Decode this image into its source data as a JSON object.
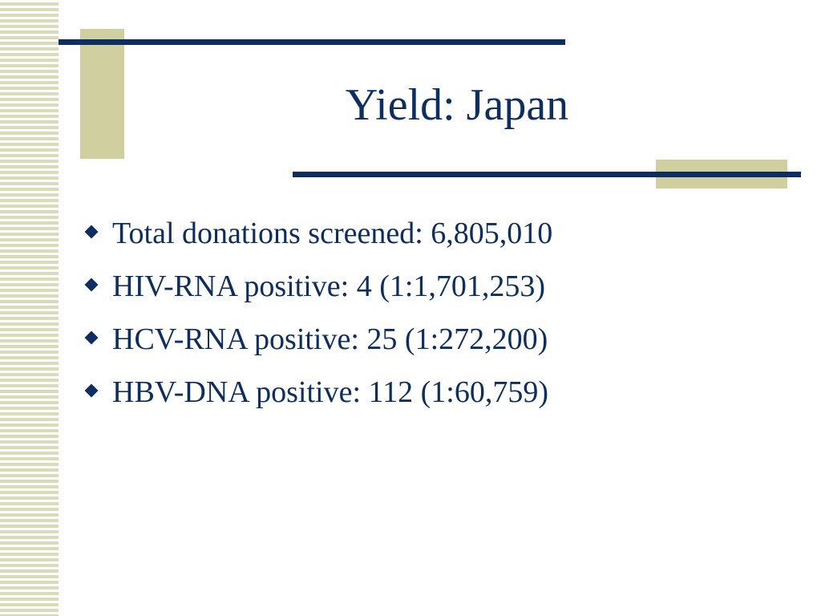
{
  "slide": {
    "title": "Yield: Japan",
    "bullets": [
      {
        "text": "Total donations screened: 6,805,010",
        "icon": "diamond-bullet-icon"
      },
      {
        "text": "HIV-RNA positive: 4 (1:1,701,253)",
        "icon": "diamond-bullet-icon"
      },
      {
        "text": "HCV-RNA positive: 25 (1:272,200)",
        "icon": "diamond-bullet-icon"
      },
      {
        "text": "HBV-DNA positive: 112 (1:60,759)",
        "icon": "diamond-bullet-icon"
      }
    ]
  },
  "colors": {
    "text": "#0d2e62",
    "accent_block": "#cfcf9f",
    "stripe": "#d9dcb9",
    "background": "#ffffff"
  }
}
